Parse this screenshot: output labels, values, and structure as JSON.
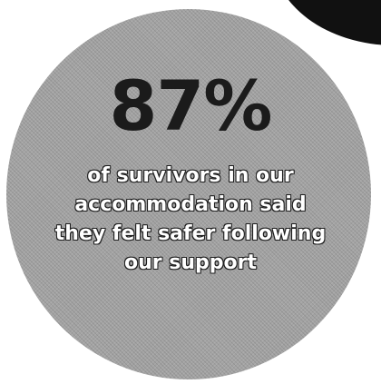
{
  "stat": {
    "figure": "87%",
    "caption_lines": [
      "of survivors in our",
      "accommodation said",
      "they felt safer following",
      "our support"
    ]
  },
  "colors": {
    "circle_fill": "#a3a3a3",
    "figure_text": "#1b1b1b",
    "caption_text": "#ffffff",
    "corner_blob": "#111111"
  }
}
